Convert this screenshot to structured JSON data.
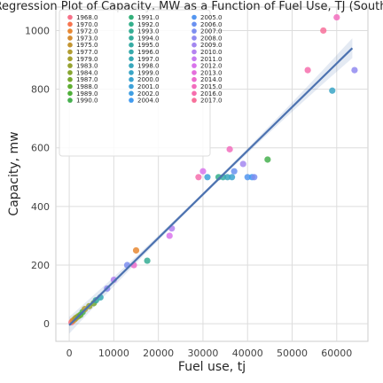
{
  "chart_data": {
    "type": "scatter",
    "title": "Regression Plot of Capacity, MW as a Function of Fuel Use, TJ (South",
    "xlabel": "Fuel use, tj",
    "ylabel": "Capacity, mw",
    "xlim": [
      -3000,
      67000
    ],
    "ylim": [
      -60,
      1080
    ],
    "xticks": [
      0,
      10000,
      20000,
      30000,
      40000,
      50000,
      60000
    ],
    "xtick_labels": [
      "0",
      "10000",
      "20000",
      "30000",
      "40000",
      "50000",
      "60000"
    ],
    "yticks": [
      0,
      200,
      400,
      600,
      800,
      1000
    ],
    "ytick_labels": [
      "0",
      "200",
      "400",
      "600",
      "800",
      "1000"
    ],
    "grid": true,
    "legend_position": "top-left, 3 columns",
    "regression": {
      "x": [
        0,
        63500
      ],
      "y": [
        -5,
        940
      ],
      "ci_band": true,
      "color": "#4c72b0"
    },
    "legend": [
      {
        "label": "1968.0",
        "color": "#f77189"
      },
      {
        "label": "1970.0",
        "color": "#f7754f"
      },
      {
        "label": "1972.0",
        "color": "#e88832"
      },
      {
        "label": "1973.0",
        "color": "#d58c32"
      },
      {
        "label": "1975.0",
        "color": "#c39532"
      },
      {
        "label": "1977.0",
        "color": "#b29d32"
      },
      {
        "label": "1979.0",
        "color": "#a4a031"
      },
      {
        "label": "1983.0",
        "color": "#96a331"
      },
      {
        "label": "1984.0",
        "color": "#88a631"
      },
      {
        "label": "1987.0",
        "color": "#77a831"
      },
      {
        "label": "1988.0",
        "color": "#5fae31"
      },
      {
        "label": "1989.0",
        "color": "#4fb03a"
      },
      {
        "label": "1990.0",
        "color": "#46b04f"
      },
      {
        "label": "1991.0",
        "color": "#33b07a"
      },
      {
        "label": "1992.0",
        "color": "#34af8c"
      },
      {
        "label": "1993.0",
        "color": "#35ad94"
      },
      {
        "label": "1994.0",
        "color": "#35ac9c"
      },
      {
        "label": "1995.0",
        "color": "#36aba4"
      },
      {
        "label": "1996.0",
        "color": "#36aaac"
      },
      {
        "label": "1997.0",
        "color": "#37a9b4"
      },
      {
        "label": "1998.0",
        "color": "#38a7bc"
      },
      {
        "label": "1999.0",
        "color": "#3aa5c6"
      },
      {
        "label": "2000.0",
        "color": "#3ba3cf"
      },
      {
        "label": "2001.0",
        "color": "#3da1d9"
      },
      {
        "label": "2002.0",
        "color": "#3f9ee2"
      },
      {
        "label": "2004.0",
        "color": "#419bf0"
      },
      {
        "label": "2005.0",
        "color": "#5496f0"
      },
      {
        "label": "2006.0",
        "color": "#6a91f0"
      },
      {
        "label": "2007.0",
        "color": "#7d8ef0"
      },
      {
        "label": "2008.0",
        "color": "#908af0"
      },
      {
        "label": "2009.0",
        "color": "#a387f0"
      },
      {
        "label": "2010.0",
        "color": "#b482f0"
      },
      {
        "label": "2011.0",
        "color": "#c67bf0"
      },
      {
        "label": "2012.0",
        "color": "#d974ec"
      },
      {
        "label": "2013.0",
        "color": "#e46fdc"
      },
      {
        "label": "2014.0",
        "color": "#ec6ccd"
      },
      {
        "label": "2015.0",
        "color": "#f26dbd"
      },
      {
        "label": "2016.0",
        "color": "#f66ead"
      },
      {
        "label": "2017.0",
        "color": "#f7709a"
      }
    ],
    "points": [
      {
        "x": 500,
        "y": 5,
        "c": "#f77189"
      },
      {
        "x": 800,
        "y": 10,
        "c": "#e88832"
      },
      {
        "x": 1200,
        "y": 15,
        "c": "#c39532"
      },
      {
        "x": 1500,
        "y": 20,
        "c": "#a4a031"
      },
      {
        "x": 2000,
        "y": 25,
        "c": "#88a631"
      },
      {
        "x": 2500,
        "y": 30,
        "c": "#5fae31"
      },
      {
        "x": 3000,
        "y": 40,
        "c": "#46b04f"
      },
      {
        "x": 3500,
        "y": 50,
        "c": "#b29d32"
      },
      {
        "x": 4500,
        "y": 60,
        "c": "#96a331"
      },
      {
        "x": 5500,
        "y": 70,
        "c": "#77a831"
      },
      {
        "x": 6000,
        "y": 80,
        "c": "#35ac9c"
      },
      {
        "x": 7000,
        "y": 90,
        "c": "#37a9b4"
      },
      {
        "x": 8500,
        "y": 120,
        "c": "#908af0"
      },
      {
        "x": 10000,
        "y": 150,
        "c": "#b482f0"
      },
      {
        "x": 13000,
        "y": 200,
        "c": "#7d8ef0"
      },
      {
        "x": 14500,
        "y": 200,
        "c": "#ec6ccd"
      },
      {
        "x": 15000,
        "y": 250,
        "c": "#e88832"
      },
      {
        "x": 17500,
        "y": 215,
        "c": "#35ad94"
      },
      {
        "x": 22500,
        "y": 300,
        "c": "#d974ec"
      },
      {
        "x": 23000,
        "y": 325,
        "c": "#b482f0"
      },
      {
        "x": 29000,
        "y": 500,
        "c": "#f66ead"
      },
      {
        "x": 30000,
        "y": 520,
        "c": "#d974ec"
      },
      {
        "x": 31000,
        "y": 500,
        "c": "#3da1d9"
      },
      {
        "x": 33500,
        "y": 500,
        "c": "#34af8c"
      },
      {
        "x": 34500,
        "y": 500,
        "c": "#36aba4"
      },
      {
        "x": 35500,
        "y": 500,
        "c": "#38a7bc"
      },
      {
        "x": 36000,
        "y": 595,
        "c": "#f26dbd"
      },
      {
        "x": 36500,
        "y": 500,
        "c": "#3ba3cf"
      },
      {
        "x": 37000,
        "y": 520,
        "c": "#6a91f0"
      },
      {
        "x": 39000,
        "y": 545,
        "c": "#a387f0"
      },
      {
        "x": 40000,
        "y": 500,
        "c": "#5496f0"
      },
      {
        "x": 41000,
        "y": 500,
        "c": "#419bf0"
      },
      {
        "x": 41500,
        "y": 500,
        "c": "#7d8ef0"
      },
      {
        "x": 44500,
        "y": 560,
        "c": "#46b04f"
      },
      {
        "x": 53500,
        "y": 865,
        "c": "#f66ead"
      },
      {
        "x": 57000,
        "y": 1000,
        "c": "#f7709a"
      },
      {
        "x": 59000,
        "y": 795,
        "c": "#3aa5c6"
      },
      {
        "x": 60000,
        "y": 1045,
        "c": "#f26dbd"
      },
      {
        "x": 64000,
        "y": 865,
        "c": "#908af0"
      }
    ]
  }
}
